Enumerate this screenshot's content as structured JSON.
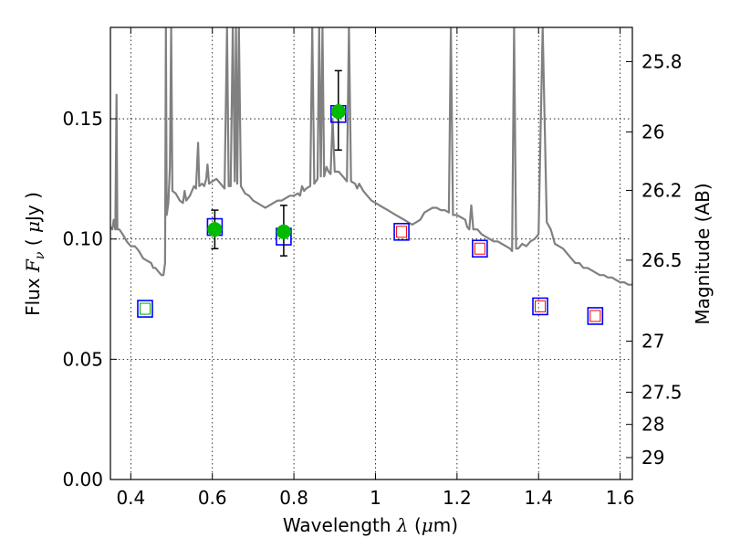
{
  "chart_data": {
    "type": "scatter",
    "xlabel": "Wavelength  λ (μm)",
    "ylabel": "Flux  Fν  ( μJy )",
    "ylabel_right": "Magnitude (AB)",
    "xlim": [
      0.35,
      1.63
    ],
    "ylim": [
      0.0,
      0.188
    ],
    "grid": true,
    "x_ticks": [
      {
        "value": 0.4,
        "label": "0.4"
      },
      {
        "value": 0.6,
        "label": "0.6"
      },
      {
        "value": 0.8,
        "label": "0.8"
      },
      {
        "value": 1.0,
        "label": "1"
      },
      {
        "value": 1.2,
        "label": "1.2"
      },
      {
        "value": 1.4,
        "label": "1.4"
      },
      {
        "value": 1.6,
        "label": "1.6"
      }
    ],
    "y_ticks": [
      {
        "value": 0.0,
        "label": "0.00"
      },
      {
        "value": 0.05,
        "label": "0.05"
      },
      {
        "value": 0.1,
        "label": "0.10"
      },
      {
        "value": 0.15,
        "label": "0.15"
      }
    ],
    "y2_ticks": [
      {
        "value": 25.8,
        "label": "25.8"
      },
      {
        "value": 26.0,
        "label": "26"
      },
      {
        "value": 26.2,
        "label": "26.2"
      },
      {
        "value": 26.5,
        "label": "26.5"
      },
      {
        "value": 27.0,
        "label": "27"
      },
      {
        "value": 27.5,
        "label": "27.5"
      },
      {
        "value": 28.0,
        "label": "28"
      },
      {
        "value": 29.0,
        "label": "29"
      }
    ],
    "colors": {
      "sed": "#808080",
      "observed": "#00bb00",
      "box": "#0000ff",
      "model_upper": "#ff0000",
      "model_green": "#00aa00",
      "errorbar": "#000000"
    },
    "observed_points": [
      {
        "x": 0.606,
        "y": 0.104,
        "yerr_low": 0.008,
        "yerr_high": 0.008
      },
      {
        "x": 0.775,
        "y": 0.103,
        "yerr_low": 0.01,
        "yerr_high": 0.011
      },
      {
        "x": 0.909,
        "y": 0.153,
        "yerr_low": 0.016,
        "yerr_high": 0.017
      }
    ],
    "model_points": [
      {
        "x": 0.435,
        "y": 0.071,
        "kind": "green"
      },
      {
        "x": 0.606,
        "y": 0.105,
        "kind": "plain"
      },
      {
        "x": 0.775,
        "y": 0.101,
        "kind": "plain"
      },
      {
        "x": 0.909,
        "y": 0.152,
        "kind": "plain"
      },
      {
        "x": 1.064,
        "y": 0.103,
        "kind": "upper"
      },
      {
        "x": 1.256,
        "y": 0.096,
        "kind": "upper"
      },
      {
        "x": 1.404,
        "y": 0.072,
        "kind": "upper"
      },
      {
        "x": 1.539,
        "y": 0.068,
        "kind": "upper"
      }
    ],
    "sed_curve": [
      [
        0.35,
        0.105
      ],
      [
        0.355,
        0.104
      ],
      [
        0.358,
        0.108
      ],
      [
        0.36,
        0.106
      ],
      [
        0.362,
        0.104
      ],
      [
        0.365,
        0.16
      ],
      [
        0.367,
        0.104
      ],
      [
        0.372,
        0.104
      ],
      [
        0.38,
        0.102
      ],
      [
        0.39,
        0.099
      ],
      [
        0.4,
        0.097
      ],
      [
        0.41,
        0.097
      ],
      [
        0.42,
        0.095
      ],
      [
        0.43,
        0.092
      ],
      [
        0.44,
        0.091
      ],
      [
        0.45,
        0.09
      ],
      [
        0.455,
        0.088
      ],
      [
        0.46,
        0.088
      ],
      [
        0.465,
        0.087
      ],
      [
        0.47,
        0.086
      ],
      [
        0.475,
        0.085
      ],
      [
        0.48,
        0.085
      ],
      [
        0.484,
        0.09
      ],
      [
        0.486,
        0.188
      ],
      [
        0.488,
        0.11
      ],
      [
        0.492,
        0.115
      ],
      [
        0.496,
        0.13
      ],
      [
        0.499,
        0.188
      ],
      [
        0.502,
        0.12
      ],
      [
        0.51,
        0.119
      ],
      [
        0.52,
        0.116
      ],
      [
        0.528,
        0.115
      ],
      [
        0.532,
        0.12
      ],
      [
        0.536,
        0.116
      ],
      [
        0.545,
        0.118
      ],
      [
        0.555,
        0.122
      ],
      [
        0.56,
        0.121
      ],
      [
        0.565,
        0.14
      ],
      [
        0.568,
        0.122
      ],
      [
        0.575,
        0.123
      ],
      [
        0.58,
        0.122
      ],
      [
        0.585,
        0.125
      ],
      [
        0.588,
        0.131
      ],
      [
        0.592,
        0.123
      ],
      [
        0.6,
        0.124
      ],
      [
        0.61,
        0.125
      ],
      [
        0.62,
        0.123
      ],
      [
        0.63,
        0.121
      ],
      [
        0.636,
        0.188
      ],
      [
        0.64,
        0.122
      ],
      [
        0.645,
        0.122
      ],
      [
        0.65,
        0.188
      ],
      [
        0.655,
        0.124
      ],
      [
        0.658,
        0.188
      ],
      [
        0.661,
        0.123
      ],
      [
        0.665,
        0.188
      ],
      [
        0.67,
        0.122
      ],
      [
        0.68,
        0.119
      ],
      [
        0.69,
        0.118
      ],
      [
        0.7,
        0.116
      ],
      [
        0.71,
        0.115
      ],
      [
        0.72,
        0.114
      ],
      [
        0.73,
        0.113
      ],
      [
        0.74,
        0.114
      ],
      [
        0.75,
        0.115
      ],
      [
        0.76,
        0.116
      ],
      [
        0.77,
        0.116
      ],
      [
        0.78,
        0.117
      ],
      [
        0.79,
        0.118
      ],
      [
        0.8,
        0.118
      ],
      [
        0.81,
        0.119
      ],
      [
        0.815,
        0.118
      ],
      [
        0.82,
        0.122
      ],
      [
        0.825,
        0.12
      ],
      [
        0.83,
        0.121
      ],
      [
        0.84,
        0.122
      ],
      [
        0.845,
        0.188
      ],
      [
        0.85,
        0.123
      ],
      [
        0.858,
        0.125
      ],
      [
        0.862,
        0.188
      ],
      [
        0.866,
        0.126
      ],
      [
        0.87,
        0.188
      ],
      [
        0.874,
        0.126
      ],
      [
        0.88,
        0.13
      ],
      [
        0.885,
        0.128
      ],
      [
        0.89,
        0.127
      ],
      [
        0.895,
        0.15
      ],
      [
        0.9,
        0.128
      ],
      [
        0.91,
        0.128
      ],
      [
        0.92,
        0.126
      ],
      [
        0.93,
        0.124
      ],
      [
        0.935,
        0.188
      ],
      [
        0.94,
        0.124
      ],
      [
        0.95,
        0.123
      ],
      [
        0.955,
        0.121
      ],
      [
        0.96,
        0.123
      ],
      [
        0.97,
        0.12
      ],
      [
        0.98,
        0.118
      ],
      [
        0.99,
        0.116
      ],
      [
        1.0,
        0.115
      ],
      [
        1.01,
        0.114
      ],
      [
        1.02,
        0.113
      ],
      [
        1.03,
        0.112
      ],
      [
        1.04,
        0.111
      ],
      [
        1.05,
        0.11
      ],
      [
        1.06,
        0.109
      ],
      [
        1.07,
        0.108
      ],
      [
        1.08,
        0.107
      ],
      [
        1.09,
        0.106
      ],
      [
        1.1,
        0.107
      ],
      [
        1.11,
        0.108
      ],
      [
        1.12,
        0.111
      ],
      [
        1.13,
        0.112
      ],
      [
        1.14,
        0.113
      ],
      [
        1.15,
        0.113
      ],
      [
        1.16,
        0.112
      ],
      [
        1.17,
        0.112
      ],
      [
        1.18,
        0.111
      ],
      [
        1.185,
        0.188
      ],
      [
        1.19,
        0.11
      ],
      [
        1.2,
        0.11
      ],
      [
        1.21,
        0.109
      ],
      [
        1.22,
        0.108
      ],
      [
        1.225,
        0.105
      ],
      [
        1.23,
        0.104
      ],
      [
        1.235,
        0.114
      ],
      [
        1.24,
        0.104
      ],
      [
        1.25,
        0.104
      ],
      [
        1.26,
        0.102
      ],
      [
        1.27,
        0.101
      ],
      [
        1.28,
        0.1
      ],
      [
        1.29,
        0.099
      ],
      [
        1.3,
        0.099
      ],
      [
        1.31,
        0.098
      ],
      [
        1.32,
        0.097
      ],
      [
        1.33,
        0.096
      ],
      [
        1.335,
        0.095
      ],
      [
        1.34,
        0.188
      ],
      [
        1.345,
        0.096
      ],
      [
        1.35,
        0.096
      ],
      [
        1.36,
        0.098
      ],
      [
        1.37,
        0.097
      ],
      [
        1.38,
        0.099
      ],
      [
        1.39,
        0.1
      ],
      [
        1.4,
        0.102
      ],
      [
        1.41,
        0.188
      ],
      [
        1.42,
        0.107
      ],
      [
        1.43,
        0.104
      ],
      [
        1.44,
        0.098
      ],
      [
        1.45,
        0.097
      ],
      [
        1.46,
        0.096
      ],
      [
        1.47,
        0.094
      ],
      [
        1.48,
        0.092
      ],
      [
        1.49,
        0.09
      ],
      [
        1.5,
        0.09
      ],
      [
        1.51,
        0.088
      ],
      [
        1.52,
        0.088
      ],
      [
        1.53,
        0.087
      ],
      [
        1.54,
        0.086
      ],
      [
        1.55,
        0.085
      ],
      [
        1.56,
        0.085
      ],
      [
        1.57,
        0.084
      ],
      [
        1.58,
        0.084
      ],
      [
        1.59,
        0.083
      ],
      [
        1.6,
        0.082
      ],
      [
        1.61,
        0.082
      ],
      [
        1.62,
        0.081
      ],
      [
        1.63,
        0.081
      ]
    ]
  }
}
